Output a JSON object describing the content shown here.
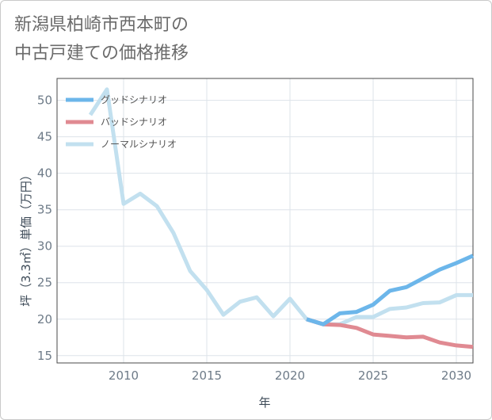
{
  "title_lines": [
    "新潟県柏崎市西本町の",
    "中古戸建ての価格推移"
  ],
  "chart_data": {
    "type": "line",
    "xlabel": "年",
    "ylabel": "坪（3.3㎡）単価（万円）",
    "xlim": [
      2006,
      2031
    ],
    "ylim": [
      14,
      53
    ],
    "xticks": [
      2010,
      2015,
      2020,
      2025,
      2030
    ],
    "yticks": [
      15,
      20,
      25,
      30,
      35,
      40,
      45,
      50
    ],
    "grid": true,
    "legend_position": "top-left",
    "series": [
      {
        "name": "グッドシナリオ",
        "color": "#6cb6ea",
        "x": [
          2021,
          2022,
          2023,
          2024,
          2025,
          2026,
          2027,
          2028,
          2029,
          2030,
          2031
        ],
        "y": [
          20.0,
          19.3,
          20.8,
          21.0,
          22.0,
          23.9,
          24.4,
          25.6,
          26.8,
          27.7,
          28.7
        ]
      },
      {
        "name": "バッドシナリオ",
        "color": "#e08a92",
        "x": [
          2021,
          2022,
          2023,
          2024,
          2025,
          2026,
          2027,
          2028,
          2029,
          2030,
          2031
        ],
        "y": [
          20.0,
          19.3,
          19.2,
          18.8,
          17.9,
          17.7,
          17.5,
          17.6,
          16.8,
          16.4,
          16.2
        ]
      },
      {
        "name": "ノーマルシナリオ",
        "color": "#c2e0ef",
        "x": [
          2008,
          2009,
          2010,
          2011,
          2012,
          2013,
          2014,
          2015,
          2016,
          2017,
          2018,
          2019,
          2020,
          2021,
          2022,
          2023,
          2024,
          2025,
          2026,
          2027,
          2028,
          2029,
          2030,
          2031
        ],
        "y": [
          48.0,
          51.5,
          35.8,
          37.2,
          35.5,
          31.8,
          26.6,
          24.0,
          20.6,
          22.4,
          23.0,
          20.4,
          22.8,
          20.0,
          19.3,
          19.3,
          20.3,
          20.3,
          21.4,
          21.6,
          22.2,
          22.3,
          23.3,
          23.3
        ]
      }
    ]
  }
}
